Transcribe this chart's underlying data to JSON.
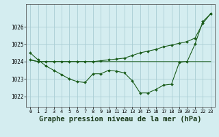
{
  "background_color": "#d4edf0",
  "grid_color": "#aacdd4",
  "line_color": "#1a5c1a",
  "xlabel": "Graphe pression niveau de la mer (hPa)",
  "xlabel_fontsize": 7.5,
  "tick_fontsize": 5.5,
  "xlim": [
    -0.5,
    23.5
  ],
  "ylim": [
    1021.4,
    1027.3
  ],
  "yticks": [
    1022,
    1023,
    1024,
    1025,
    1026
  ],
  "xticks": [
    0,
    1,
    2,
    3,
    4,
    5,
    6,
    7,
    8,
    9,
    10,
    11,
    12,
    13,
    14,
    15,
    16,
    17,
    18,
    19,
    20,
    21,
    22,
    23
  ],
  "series_wavy": [
    1024.5,
    1024.1,
    1023.75,
    1023.5,
    1023.25,
    1023.0,
    1022.85,
    1022.8,
    1023.3,
    1023.3,
    1023.5,
    1023.45,
    1023.35,
    1022.9,
    1022.2,
    1022.2,
    1022.4,
    1022.65,
    1022.7,
    1023.95,
    1024.0,
    1025.0,
    1026.3,
    1026.75
  ],
  "series_flat": [
    1024.1,
    1024.0,
    1024.0,
    1024.0,
    1024.0,
    1024.0,
    1024.0,
    1024.0,
    1024.0,
    1024.0,
    1024.0,
    1024.0,
    1024.0,
    1024.0,
    1024.0,
    1024.0,
    1024.0,
    1024.0,
    1024.0,
    1024.0,
    1024.0,
    1024.0,
    1024.0,
    1024.0
  ],
  "series_rising": [
    1024.1,
    1024.0,
    1024.0,
    1024.0,
    1024.0,
    1024.0,
    1024.0,
    1024.0,
    1024.0,
    1024.05,
    1024.1,
    1024.15,
    1024.2,
    1024.35,
    1024.5,
    1024.6,
    1024.7,
    1024.85,
    1024.95,
    1025.05,
    1025.15,
    1025.35,
    1026.2,
    1026.75
  ]
}
